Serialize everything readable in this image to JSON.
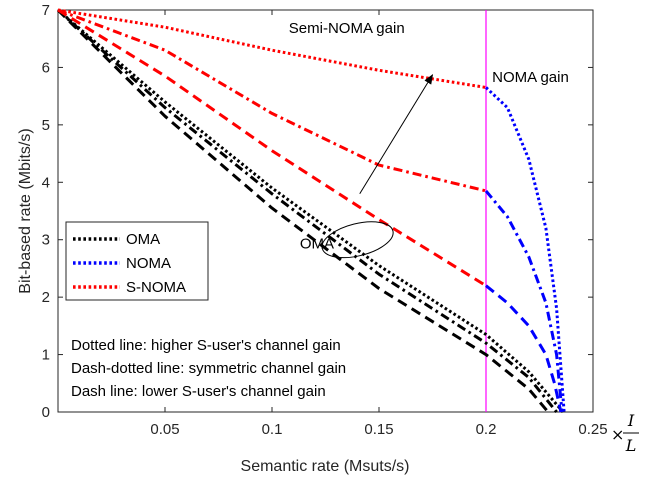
{
  "chart_data": {
    "type": "line",
    "xlabel": "Semantic rate (Msuts/s)",
    "ylabel": "Bit-based rate (Mbits/s)",
    "xlim": [
      0,
      0.25
    ],
    "ylim": [
      0,
      7
    ],
    "x_ticks": [
      "0.05",
      "0.1",
      "0.15",
      "0.2",
      "0.25"
    ],
    "x_tick_values": [
      0.05,
      0.1,
      0.15,
      0.2,
      0.25
    ],
    "y_ticks": [
      "0",
      "1",
      "2",
      "3",
      "4",
      "5",
      "6",
      "7"
    ],
    "y_tick_values": [
      0,
      1,
      2,
      3,
      4,
      5,
      6,
      7
    ],
    "x_multiplier": {
      "times": "×",
      "numerator": "I",
      "denominator": "L"
    },
    "grid": false,
    "legend": {
      "placement": "middle-left",
      "entries": [
        {
          "label": "OMA",
          "color": "#000000"
        },
        {
          "label": "NOMA",
          "color": "#0000ff"
        },
        {
          "label": "S-NOMA",
          "color": "#ff0000"
        }
      ]
    },
    "line_style_notes": [
      "Dotted line: higher S-user's channel gain",
      "Dash-dotted line: symmetric channel gain",
      "Dash line: lower S-user's channel gain"
    ],
    "reference_line": {
      "x": 0.2,
      "color": "#ff00ff"
    },
    "annotations": {
      "semi_noma_gain": {
        "text": "Semi-NOMA gain",
        "x": 0.162,
        "y": 6.6
      },
      "noma_gain": {
        "text": "NOMA gain",
        "x": 0.201,
        "y": 5.75
      },
      "oma": {
        "text": "OMA",
        "x": 0.113,
        "y": 2.85
      },
      "ellipse": {
        "cx": 0.14,
        "cy": 3.0,
        "rx": 0.017,
        "ry": 0.28
      },
      "arrow": {
        "from": [
          0.141,
          3.8
        ],
        "to": [
          0.175,
          5.87
        ]
      }
    },
    "series": [
      {
        "group": "OMA",
        "style": "dotted",
        "color": "#000000",
        "x": [
          0,
          0.05,
          0.1,
          0.15,
          0.2,
          0.22,
          0.236
        ],
        "y": [
          7.0,
          5.4,
          3.9,
          2.55,
          1.35,
          0.7,
          0.0
        ]
      },
      {
        "group": "OMA",
        "style": "dashdot",
        "color": "#000000",
        "x": [
          0,
          0.05,
          0.1,
          0.15,
          0.2,
          0.22,
          0.233
        ],
        "y": [
          7.0,
          5.3,
          3.8,
          2.4,
          1.2,
          0.6,
          0.0
        ]
      },
      {
        "group": "OMA",
        "style": "dashed",
        "color": "#000000",
        "x": [
          0,
          0.05,
          0.1,
          0.15,
          0.2,
          0.22,
          0.229
        ],
        "y": [
          7.0,
          5.15,
          3.55,
          2.15,
          1.0,
          0.4,
          0.0
        ]
      },
      {
        "group": "NOMA",
        "style": "dotted",
        "color": "#0000ff",
        "x": [
          0.2,
          0.21,
          0.22,
          0.228,
          0.233,
          0.2365
        ],
        "y": [
          5.65,
          5.3,
          4.4,
          3.2,
          1.8,
          0.0
        ]
      },
      {
        "group": "NOMA",
        "style": "dashdot",
        "color": "#0000ff",
        "x": [
          0.2,
          0.21,
          0.22,
          0.228,
          0.233,
          0.2355
        ],
        "y": [
          3.85,
          3.4,
          2.7,
          1.9,
          1.0,
          0.0
        ]
      },
      {
        "group": "NOMA",
        "style": "dashed",
        "color": "#0000ff",
        "x": [
          0.2,
          0.21,
          0.22,
          0.228,
          0.232,
          0.235
        ],
        "y": [
          2.2,
          1.9,
          1.5,
          1.0,
          0.5,
          0.0
        ]
      },
      {
        "group": "S-NOMA",
        "style": "dotted",
        "color": "#ff0000",
        "x": [
          0,
          0.05,
          0.1,
          0.15,
          0.175,
          0.2
        ],
        "y": [
          7.0,
          6.7,
          6.3,
          5.95,
          5.8,
          5.65
        ]
      },
      {
        "group": "S-NOMA",
        "style": "dashdot",
        "color": "#ff0000",
        "x": [
          0,
          0.05,
          0.1,
          0.15,
          0.2
        ],
        "y": [
          7.0,
          6.3,
          5.2,
          4.3,
          3.85
        ]
      },
      {
        "group": "S-NOMA",
        "style": "dashed",
        "color": "#ff0000",
        "x": [
          0,
          0.05,
          0.1,
          0.15,
          0.2
        ],
        "y": [
          7.0,
          5.85,
          4.55,
          3.35,
          2.2
        ]
      }
    ]
  }
}
